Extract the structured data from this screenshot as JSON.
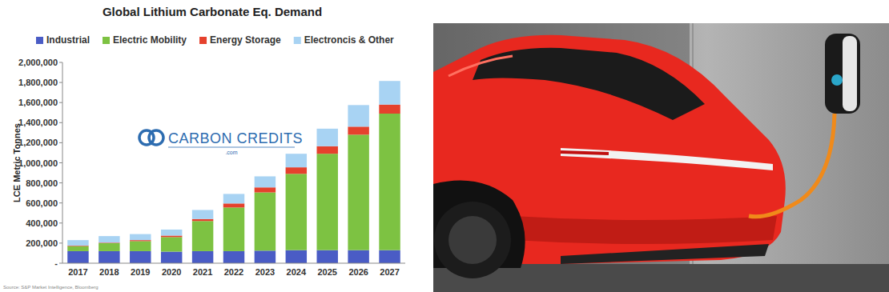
{
  "chart_data": {
    "type": "bar",
    "stacked": true,
    "title": "Global Lithium Carbonate Eq. Demand",
    "y_label": "LCE Metric Tonnes",
    "source": "Source: S&P Market Intelligence, Bloomberg",
    "annotations": [
      "CARBON CREDITS",
      ".com"
    ],
    "legend": "top",
    "grid": false,
    "categories": [
      "2017",
      "2018",
      "2019",
      "2020",
      "2021",
      "2022",
      "2023",
      "2024",
      "2025",
      "2026",
      "2027"
    ],
    "series": [
      {
        "name": "Industrial",
        "color": "#4a5cc5",
        "values": [
          120000,
          120000,
          120000,
          115000,
          120000,
          120000,
          125000,
          130000,
          130000,
          130000,
          130000
        ]
      },
      {
        "name": "Electric Mobility",
        "color": "#7dc242",
        "values": [
          50000,
          80000,
          100000,
          145000,
          300000,
          435000,
          580000,
          760000,
          960000,
          1150000,
          1360000
        ]
      },
      {
        "name": "Energy Storage",
        "color": "#e5412d",
        "values": [
          5000,
          5000,
          10000,
          15000,
          20000,
          40000,
          50000,
          65000,
          75000,
          80000,
          90000
        ]
      },
      {
        "name": "Electroncis & Other",
        "color": "#a8d3f3",
        "values": [
          55000,
          65000,
          60000,
          60000,
          90000,
          95000,
          110000,
          135000,
          175000,
          215000,
          235000
        ]
      }
    ],
    "ylim": [
      0,
      2000000
    ],
    "yticks": [
      {
        "value": 0,
        "label": "-"
      },
      {
        "value": 200000,
        "label": "200,000"
      },
      {
        "value": 400000,
        "label": "400,000"
      },
      {
        "value": 600000,
        "label": "600,000"
      },
      {
        "value": 800000,
        "label": "800,000"
      },
      {
        "value": 1000000,
        "label": "1,000,000"
      },
      {
        "value": 1200000,
        "label": "1,200,000"
      },
      {
        "value": 1400000,
        "label": "1,400,000"
      },
      {
        "value": 1600000,
        "label": "1,600,000"
      },
      {
        "value": 1800000,
        "label": "1,800,000"
      },
      {
        "value": 2000000,
        "label": "2,000,000"
      }
    ]
  }
}
